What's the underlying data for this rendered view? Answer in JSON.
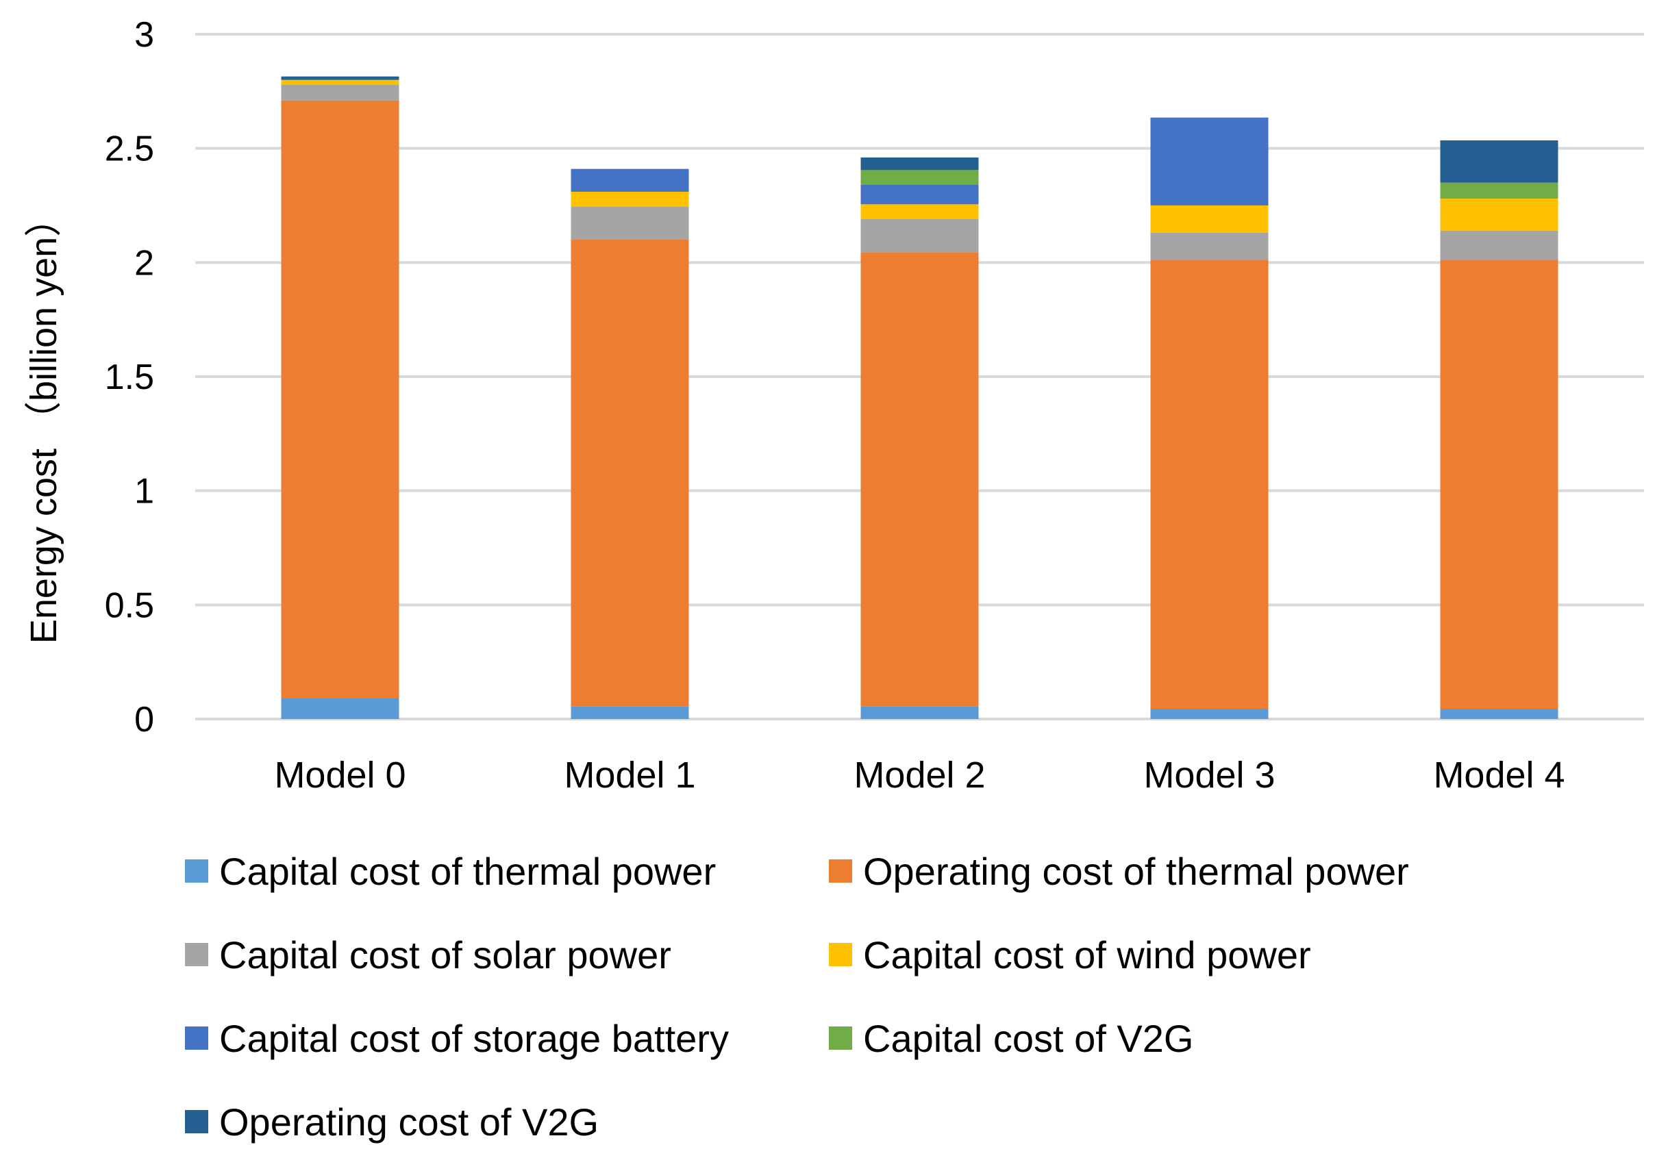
{
  "chart_data": {
    "type": "bar",
    "stacked": true,
    "title": "",
    "xlabel": "",
    "ylabel": "Energy cost （billion yen）",
    "ylim": [
      0,
      3
    ],
    "yticks": [
      "0",
      "0.5",
      "1",
      "1.5",
      "2",
      "2.5",
      "3"
    ],
    "grid": true,
    "legend_position": "bottom",
    "categories": [
      "Model 0",
      "Model 1",
      "Model 2",
      "Model 3",
      "Model 4"
    ],
    "series": [
      {
        "name": "Capital cost of thermal power",
        "color": "#5B9BD5",
        "values": [
          0.09,
          0.055,
          0.055,
          0.045,
          0.045
        ]
      },
      {
        "name": "Operating cost of thermal power",
        "color": "#ED7D31",
        "values": [
          2.62,
          2.045,
          1.99,
          1.965,
          1.965
        ]
      },
      {
        "name": "Capital cost of solar power",
        "color": "#A5A5A5",
        "values": [
          0.07,
          0.145,
          0.145,
          0.12,
          0.13
        ]
      },
      {
        "name": "Capital cost of wind power",
        "color": "#FFC000",
        "values": [
          0.02,
          0.065,
          0.065,
          0.12,
          0.14
        ]
      },
      {
        "name": "Capital cost of storage battery",
        "color": "#4472C4",
        "values": [
          0.0,
          0.1,
          0.085,
          0.385,
          0.0
        ]
      },
      {
        "name": "Capital cost of V2G",
        "color": "#70AD47",
        "values": [
          0.0,
          0.0,
          0.065,
          0.0,
          0.07
        ]
      },
      {
        "name": "Operating cost of V2G",
        "color": "#255E91",
        "values": [
          0.015,
          0.0,
          0.055,
          0.0,
          0.185
        ]
      }
    ]
  }
}
